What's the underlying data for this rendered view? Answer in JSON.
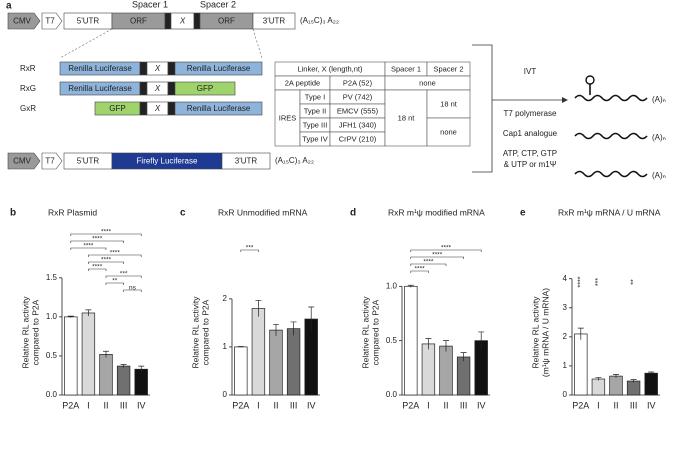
{
  "figure": {
    "panel_a": "a",
    "construct": {
      "promoter": "CMV",
      "t7": "T7",
      "utr5": "5'UTR",
      "orf1": "ORF",
      "linker": "X",
      "orf2": "ORF",
      "utr3": "3'UTR",
      "polya": "(A₁₅C)₃ A₂₂",
      "spacer1": "Spacer 1",
      "spacer2": "Spacer 2"
    },
    "reporters": [
      {
        "name": "RxR",
        "left": "Renilla Luciferase",
        "linker": "X",
        "right": "Renilla Luciferase"
      },
      {
        "name": "RxG",
        "left": "Renilla Luciferase",
        "linker": "X",
        "right": "GFP"
      },
      {
        "name": "GxR",
        "left": "GFP",
        "linker": "X",
        "right": "Renilla Luciferase"
      }
    ],
    "control": {
      "promoter": "CMV",
      "t7": "T7",
      "utr5": "5'UTR",
      "orf": "Firefly Luciferase",
      "utr3": "3'UTR",
      "polya": "(A₁₅C)₃ A₂₂"
    },
    "table": {
      "header": [
        "Linker, X (length,nt)",
        "Spacer 1",
        "Spacer 2"
      ],
      "peptide_row": [
        "2A peptide",
        "P2A (52)",
        "none"
      ],
      "ires_label": "IRES",
      "ires_rows": [
        [
          "Type I",
          "PV (742)"
        ],
        [
          "Type II",
          "EMCV (555)"
        ],
        [
          "Type III",
          "JFH1 (340)"
        ],
        [
          "Type IV",
          "CrPV (210)"
        ]
      ],
      "spacer1_ires": "18 nt",
      "spacer2_ires": [
        "18 nt",
        "none"
      ]
    },
    "ivt": {
      "label": "IVT",
      "items": [
        "T7 polymerase",
        "Cap1 analogue"
      ],
      "nucleotides": [
        "ATP, CTP, GTP",
        "& UTP or m1Ψ"
      ]
    },
    "mrna_tails": [
      "(A)ₙ",
      "(A)ₙ",
      "(A)ₙ"
    ]
  },
  "chart_data": [
    {
      "type": "bar",
      "panel": "b",
      "title": "RxR Plasmid",
      "y_label": [
        "Relative RL activity",
        "compared to P2A"
      ],
      "categories": [
        "P2A",
        "I",
        "II",
        "III",
        "IV"
      ],
      "values": [
        1.0,
        1.05,
        0.52,
        0.37,
        0.33
      ],
      "errors": [
        0.01,
        0.04,
        0.04,
        0.02,
        0.04
      ],
      "colors": [
        "#ffffff",
        "#d9d9d9",
        "#a6a6a6",
        "#707070",
        "#111111"
      ],
      "ylim": [
        0,
        1.6
      ],
      "yticks": [
        {
          "value": 0,
          "label": "0.0"
        },
        0.5,
        {
          "value": 1,
          "label": "1.0"
        },
        1.5
      ],
      "brackets": [
        {
          "between": [
            "P2A",
            "IV"
          ],
          "label": "****"
        },
        {
          "between": [
            "P2A",
            "III"
          ],
          "label": "****"
        },
        {
          "between": [
            "P2A",
            "II"
          ],
          "label": "****"
        },
        {
          "between": [
            "I",
            "IV"
          ],
          "label": "****"
        },
        {
          "between": [
            "I",
            "III"
          ],
          "label": "****"
        },
        {
          "between": [
            "I",
            "II"
          ],
          "label": "****"
        },
        {
          "between": [
            "II",
            "IV"
          ],
          "label": "***"
        },
        {
          "between": [
            "II",
            "III"
          ],
          "label": "**"
        },
        {
          "between": [
            "III",
            "IV"
          ],
          "label": "ns"
        }
      ]
    },
    {
      "type": "bar",
      "panel": "c",
      "title": "RxR Unmodified mRNA",
      "y_label": [
        "Relative RL activity",
        "compared to P2A"
      ],
      "categories": [
        "P2A",
        "I",
        "II",
        "III",
        "IV"
      ],
      "values": [
        1.0,
        1.8,
        1.35,
        1.38,
        1.58
      ],
      "errors": [
        0.01,
        0.17,
        0.12,
        0.14,
        0.25
      ],
      "colors": [
        "#ffffff",
        "#d9d9d9",
        "#a6a6a6",
        "#707070",
        "#111111"
      ],
      "ylim": [
        0,
        2.6
      ],
      "yticks": [
        0,
        1,
        2
      ],
      "brackets": [
        {
          "between": [
            "P2A",
            "I"
          ],
          "label": "***"
        }
      ]
    },
    {
      "type": "bar",
      "panel": "d",
      "title": "RxR m¹ψ modified mRNA",
      "y_label": [
        "Relative RL activity",
        "compared to P2A"
      ],
      "categories": [
        "P2A",
        "I",
        "II",
        "III",
        "IV"
      ],
      "values": [
        1.0,
        0.47,
        0.45,
        0.35,
        0.5
      ],
      "errors": [
        0.01,
        0.05,
        0.05,
        0.04,
        0.08
      ],
      "colors": [
        "#ffffff",
        "#d9d9d9",
        "#a6a6a6",
        "#707070",
        "#111111"
      ],
      "ylim": [
        0,
        1.15
      ],
      "yticks": [
        {
          "value": 0,
          "label": "0.0"
        },
        0.5,
        {
          "value": 1,
          "label": "1.0"
        }
      ],
      "brackets": [
        {
          "between": [
            "P2A",
            "IV"
          ],
          "label": "****"
        },
        {
          "between": [
            "P2A",
            "III"
          ],
          "label": "****"
        },
        {
          "between": [
            "P2A",
            "II"
          ],
          "label": "****"
        },
        {
          "between": [
            "P2A",
            "I"
          ],
          "label": "****"
        }
      ]
    },
    {
      "type": "bar",
      "panel": "e",
      "title": "RxR m¹ψ mRNA / U mRNA",
      "y_label": [
        "Relative RL activity",
        "(m¹ψ mRNA / U mRNA)"
      ],
      "categories": [
        "P2A",
        "I",
        "II",
        "III",
        "IV"
      ],
      "values": [
        2.1,
        0.55,
        0.65,
        0.48,
        0.75
      ],
      "errors": [
        0.2,
        0.05,
        0.06,
        0.05,
        0.04
      ],
      "colors": [
        "#ffffff",
        "#d9d9d9",
        "#a6a6a6",
        "#707070",
        "#111111"
      ],
      "ylim": [
        0,
        4.3
      ],
      "yticks": [
        0,
        1,
        2,
        3,
        4
      ],
      "star_labels": [
        "****",
        "***",
        null,
        "**",
        null
      ]
    }
  ]
}
